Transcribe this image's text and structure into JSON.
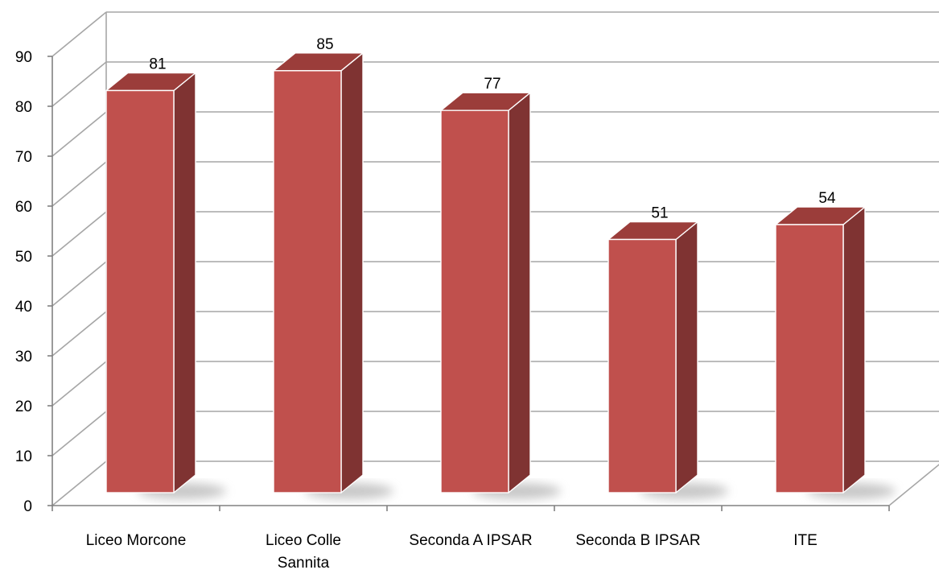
{
  "chart_data": {
    "type": "bar",
    "categories": [
      "Liceo Morcone",
      "Liceo Colle Sannita",
      "Seconda A IPSAR",
      "Seconda B IPSAR",
      "ITE"
    ],
    "category_lines": [
      [
        "Liceo Morcone"
      ],
      [
        "Liceo Colle",
        "Sannita"
      ],
      [
        "Seconda A IPSAR"
      ],
      [
        "Seconda B IPSAR"
      ],
      [
        "ITE"
      ]
    ],
    "values": [
      81,
      85,
      77,
      51,
      54
    ],
    "data_labels": [
      "81",
      "85",
      "77",
      "51",
      "54"
    ],
    "ylim": [
      0,
      90
    ],
    "yticks": [
      0,
      10,
      20,
      30,
      40,
      50,
      60,
      70,
      80,
      90
    ],
    "title": "",
    "xlabel": "",
    "ylabel": "",
    "grid": true,
    "legend": "none",
    "three_d": true,
    "colors": {
      "bar_front": "#c0504d",
      "bar_side": "#7f3332",
      "bar_top": "#9b3d3a",
      "bar_edge": "#ffffff",
      "grid": "#a6a6a6",
      "axis": "#808080"
    }
  }
}
